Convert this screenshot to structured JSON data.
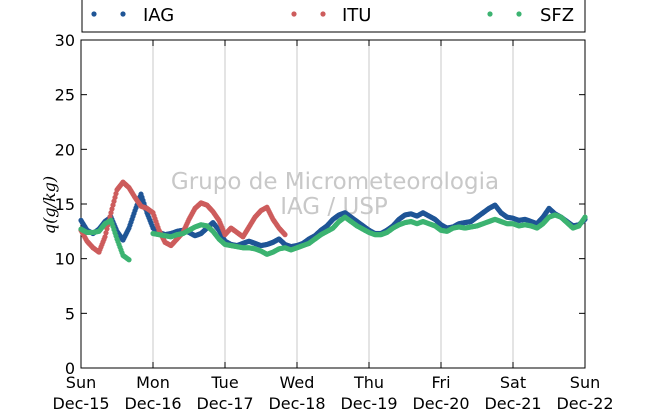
{
  "chart_data": {
    "type": "scatter",
    "ylabel": "q(g/kg)",
    "ylim": [
      0,
      30
    ],
    "yticks": [
      0,
      5,
      10,
      15,
      20,
      25,
      30
    ],
    "xlim": [
      "2013-12-15 00:00",
      "2013-12-22 00:00"
    ],
    "xticks": [
      {
        "day": "Sun",
        "date": "Dec-15"
      },
      {
        "day": "Mon",
        "date": "Dec-16"
      },
      {
        "day": "Tue",
        "date": "Dec-17"
      },
      {
        "day": "Wed",
        "date": "Dec-18"
      },
      {
        "day": "Thu",
        "date": "Dec-19"
      },
      {
        "day": "Fri",
        "date": "Dec-20"
      },
      {
        "day": "Sat",
        "date": "Dec-21"
      },
      {
        "day": "Sun",
        "date": "Dec-22"
      }
    ],
    "grid": "vertical",
    "legend": "top",
    "watermark": [
      "Grupo de Micrometeorologia",
      "IAG / USP"
    ],
    "series": [
      {
        "name": "IAG",
        "color": "#1f5596",
        "points": [
          [
            "2013-12-15 00:00",
            13.5
          ],
          [
            "2013-12-15 02:00",
            12.6
          ],
          [
            "2013-12-15 04:00",
            12.3
          ],
          [
            "2013-12-15 06:00",
            12.7
          ],
          [
            "2013-12-15 08:00",
            13.4
          ],
          [
            "2013-12-15 10:00",
            13.8
          ],
          [
            "2013-12-15 12:00",
            12.5
          ],
          [
            "2013-12-15 14:00",
            11.7
          ],
          [
            "2013-12-15 16:00",
            12.8
          ],
          [
            "2013-12-15 18:00",
            14.4
          ],
          [
            "2013-12-15 20:00",
            15.9
          ],
          [
            "2013-12-15 22:00",
            14.2
          ],
          [
            "2013-12-16 00:00",
            12.8
          ],
          [
            "2013-12-16 02:00",
            12.4
          ],
          [
            "2013-12-16 04:00",
            12.2
          ],
          [
            "2013-12-16 06:00",
            12.3
          ],
          [
            "2013-12-16 08:00",
            12.5
          ],
          [
            "2013-12-16 10:00",
            12.6
          ],
          [
            "2013-12-16 12:00",
            12.4
          ],
          [
            "2013-12-16 14:00",
            12.1
          ],
          [
            "2013-12-16 16:00",
            12.3
          ],
          [
            "2013-12-16 18:00",
            12.8
          ],
          [
            "2013-12-16 20:00",
            13.3
          ],
          [
            "2013-12-16 22:00",
            12.6
          ],
          [
            "2013-12-17 00:00",
            11.6
          ],
          [
            "2013-12-17 02:00",
            11.3
          ],
          [
            "2013-12-17 04:00",
            11.2
          ],
          [
            "2013-12-17 06:00",
            11.4
          ],
          [
            "2013-12-17 08:00",
            11.6
          ],
          [
            "2013-12-17 10:00",
            11.4
          ],
          [
            "2013-12-17 12:00",
            11.2
          ],
          [
            "2013-12-17 14:00",
            11.3
          ],
          [
            "2013-12-17 16:00",
            11.5
          ],
          [
            "2013-12-17 18:00",
            11.8
          ],
          [
            "2013-12-17 20:00",
            11.3
          ],
          [
            "2013-12-17 22:00",
            11.1
          ],
          [
            "2013-12-18 00:00",
            11.2
          ],
          [
            "2013-12-18 02:00",
            11.4
          ],
          [
            "2013-12-18 04:00",
            11.8
          ],
          [
            "2013-12-18 06:00",
            12.1
          ],
          [
            "2013-12-18 08:00",
            12.6
          ],
          [
            "2013-12-18 10:00",
            13.0
          ],
          [
            "2013-12-18 12:00",
            13.6
          ],
          [
            "2013-12-18 14:00",
            14.0
          ],
          [
            "2013-12-18 16:00",
            14.2
          ],
          [
            "2013-12-18 18:00",
            13.8
          ],
          [
            "2013-12-18 20:00",
            13.4
          ],
          [
            "2013-12-18 22:00",
            13.0
          ],
          [
            "2013-12-19 00:00",
            12.6
          ],
          [
            "2013-12-19 02:00",
            12.3
          ],
          [
            "2013-12-19 04:00",
            12.3
          ],
          [
            "2013-12-19 06:00",
            12.6
          ],
          [
            "2013-12-19 08:00",
            13.0
          ],
          [
            "2013-12-19 10:00",
            13.6
          ],
          [
            "2013-12-19 12:00",
            14.0
          ],
          [
            "2013-12-19 14:00",
            14.1
          ],
          [
            "2013-12-19 16:00",
            13.9
          ],
          [
            "2013-12-19 18:00",
            14.2
          ],
          [
            "2013-12-19 20:00",
            13.9
          ],
          [
            "2013-12-19 22:00",
            13.6
          ],
          [
            "2013-12-20 00:00",
            13.1
          ],
          [
            "2013-12-20 02:00",
            12.8
          ],
          [
            "2013-12-20 04:00",
            12.9
          ],
          [
            "2013-12-20 06:00",
            13.2
          ],
          [
            "2013-12-20 08:00",
            13.3
          ],
          [
            "2013-12-20 10:00",
            13.4
          ],
          [
            "2013-12-20 12:00",
            13.8
          ],
          [
            "2013-12-20 14:00",
            14.2
          ],
          [
            "2013-12-20 16:00",
            14.6
          ],
          [
            "2013-12-20 18:00",
            14.9
          ],
          [
            "2013-12-20 20:00",
            14.2
          ],
          [
            "2013-12-20 22:00",
            13.8
          ],
          [
            "2013-12-21 00:00",
            13.7
          ],
          [
            "2013-12-21 02:00",
            13.5
          ],
          [
            "2013-12-21 04:00",
            13.6
          ],
          [
            "2013-12-21 06:00",
            13.4
          ],
          [
            "2013-12-21 08:00",
            13.2
          ],
          [
            "2013-12-21 10:00",
            13.8
          ],
          [
            "2013-12-21 12:00",
            14.6
          ],
          [
            "2013-12-21 14:00",
            14.1
          ],
          [
            "2013-12-21 16:00",
            13.8
          ],
          [
            "2013-12-21 18:00",
            13.4
          ],
          [
            "2013-12-21 20:00",
            13.0
          ],
          [
            "2013-12-21 22:00",
            13.1
          ],
          [
            "2013-12-22 00:00",
            13.6
          ]
        ]
      },
      {
        "name": "ITU",
        "color": "#cd5c5c",
        "points": [
          [
            "2013-12-15 00:00",
            12.6
          ],
          [
            "2013-12-15 02:00",
            11.6
          ],
          [
            "2013-12-15 04:00",
            11.0
          ],
          [
            "2013-12-15 06:00",
            10.6
          ],
          [
            "2013-12-15 08:00",
            12.0
          ],
          [
            "2013-12-15 10:00",
            14.2
          ],
          [
            "2013-12-15 12:00",
            16.3
          ],
          [
            "2013-12-15 14:00",
            17.0
          ],
          [
            "2013-12-15 16:00",
            16.5
          ],
          [
            "2013-12-15 18:00",
            15.6
          ],
          [
            "2013-12-15 20:00",
            14.8
          ],
          [
            "2013-12-15 22:00",
            14.6
          ],
          [
            "2013-12-16 00:00",
            14.2
          ],
          [
            "2013-12-16 02:00",
            12.6
          ],
          [
            "2013-12-16 04:00",
            11.5
          ],
          [
            "2013-12-16 06:00",
            11.2
          ],
          [
            "2013-12-16 08:00",
            11.8
          ],
          [
            "2013-12-16 10:00",
            12.4
          ],
          [
            "2013-12-16 12:00",
            13.6
          ],
          [
            "2013-12-16 14:00",
            14.6
          ],
          [
            "2013-12-16 16:00",
            15.1
          ],
          [
            "2013-12-16 18:00",
            14.9
          ],
          [
            "2013-12-16 20:00",
            14.3
          ],
          [
            "2013-12-16 22:00",
            13.5
          ],
          [
            "2013-12-17 00:00",
            12.2
          ],
          [
            "2013-12-17 02:00",
            12.8
          ],
          [
            "2013-12-17 04:00",
            12.4
          ],
          [
            "2013-12-17 06:00",
            12.0
          ],
          [
            "2013-12-17 08:00",
            12.9
          ],
          [
            "2013-12-17 10:00",
            13.8
          ],
          [
            "2013-12-17 12:00",
            14.4
          ],
          [
            "2013-12-17 14:00",
            14.7
          ],
          [
            "2013-12-17 16:00",
            13.6
          ],
          [
            "2013-12-17 18:00",
            12.8
          ],
          [
            "2013-12-17 20:00",
            12.2
          ]
        ]
      },
      {
        "name": "SFZ",
        "color": "#3cb371",
        "points": [
          [
            "2013-12-15 00:00",
            12.7
          ],
          [
            "2013-12-15 02:00",
            12.4
          ],
          [
            "2013-12-15 04:00",
            12.4
          ],
          [
            "2013-12-15 06:00",
            12.5
          ],
          [
            "2013-12-15 08:00",
            13.2
          ],
          [
            "2013-12-15 10:00",
            13.5
          ],
          [
            "2013-12-15 12:00",
            11.8
          ],
          [
            "2013-12-15 14:00",
            10.3
          ],
          [
            "2013-12-15 16:00",
            9.9
          ],
          [
            "2013-12-16 00:00",
            12.3
          ],
          [
            "2013-12-16 02:00",
            12.2
          ],
          [
            "2013-12-16 04:00",
            12.1
          ],
          [
            "2013-12-16 06:00",
            12.0
          ],
          [
            "2013-12-16 08:00",
            12.2
          ],
          [
            "2013-12-16 10:00",
            12.3
          ],
          [
            "2013-12-16 12:00",
            12.6
          ],
          [
            "2013-12-16 14:00",
            12.9
          ],
          [
            "2013-12-16 16:00",
            13.1
          ],
          [
            "2013-12-16 18:00",
            13.0
          ],
          [
            "2013-12-16 20:00",
            12.5
          ],
          [
            "2013-12-16 22:00",
            11.8
          ],
          [
            "2013-12-17 00:00",
            11.3
          ],
          [
            "2013-12-17 02:00",
            11.2
          ],
          [
            "2013-12-17 04:00",
            11.1
          ],
          [
            "2013-12-17 06:00",
            11.0
          ],
          [
            "2013-12-17 08:00",
            11.0
          ],
          [
            "2013-12-17 10:00",
            10.9
          ],
          [
            "2013-12-17 12:00",
            10.7
          ],
          [
            "2013-12-17 14:00",
            10.4
          ],
          [
            "2013-12-17 16:00",
            10.6
          ],
          [
            "2013-12-17 18:00",
            10.9
          ],
          [
            "2013-12-17 20:00",
            11.0
          ],
          [
            "2013-12-17 22:00",
            10.8
          ],
          [
            "2013-12-18 00:00",
            11.0
          ],
          [
            "2013-12-18 02:00",
            11.2
          ],
          [
            "2013-12-18 04:00",
            11.4
          ],
          [
            "2013-12-18 06:00",
            11.8
          ],
          [
            "2013-12-18 08:00",
            12.2
          ],
          [
            "2013-12-18 10:00",
            12.5
          ],
          [
            "2013-12-18 12:00",
            12.8
          ],
          [
            "2013-12-18 14:00",
            13.4
          ],
          [
            "2013-12-18 16:00",
            13.8
          ],
          [
            "2013-12-18 18:00",
            13.4
          ],
          [
            "2013-12-18 20:00",
            13.0
          ],
          [
            "2013-12-18 22:00",
            12.7
          ],
          [
            "2013-12-19 00:00",
            12.4
          ],
          [
            "2013-12-19 02:00",
            12.2
          ],
          [
            "2013-12-19 04:00",
            12.2
          ],
          [
            "2013-12-19 06:00",
            12.4
          ],
          [
            "2013-12-19 08:00",
            12.8
          ],
          [
            "2013-12-19 10:00",
            13.1
          ],
          [
            "2013-12-19 12:00",
            13.3
          ],
          [
            "2013-12-19 14:00",
            13.4
          ],
          [
            "2013-12-19 16:00",
            13.2
          ],
          [
            "2013-12-19 18:00",
            13.4
          ],
          [
            "2013-12-19 20:00",
            13.2
          ],
          [
            "2013-12-19 22:00",
            13.0
          ],
          [
            "2013-12-20 00:00",
            12.6
          ],
          [
            "2013-12-20 02:00",
            12.5
          ],
          [
            "2013-12-20 04:00",
            12.8
          ],
          [
            "2013-12-20 06:00",
            12.9
          ],
          [
            "2013-12-20 08:00",
            12.8
          ],
          [
            "2013-12-20 10:00",
            12.9
          ],
          [
            "2013-12-20 12:00",
            13.0
          ],
          [
            "2013-12-20 14:00",
            13.2
          ],
          [
            "2013-12-20 16:00",
            13.4
          ],
          [
            "2013-12-20 18:00",
            13.6
          ],
          [
            "2013-12-20 20:00",
            13.4
          ],
          [
            "2013-12-20 22:00",
            13.2
          ],
          [
            "2013-12-21 00:00",
            13.2
          ],
          [
            "2013-12-21 02:00",
            13.0
          ],
          [
            "2013-12-21 04:00",
            13.1
          ],
          [
            "2013-12-21 06:00",
            13.0
          ],
          [
            "2013-12-21 08:00",
            12.8
          ],
          [
            "2013-12-21 10:00",
            13.2
          ],
          [
            "2013-12-21 12:00",
            13.8
          ],
          [
            "2013-12-21 14:00",
            14.0
          ],
          [
            "2013-12-21 16:00",
            13.8
          ],
          [
            "2013-12-21 18:00",
            13.3
          ],
          [
            "2013-12-21 20:00",
            12.8
          ],
          [
            "2013-12-21 22:00",
            13.0
          ],
          [
            "2013-12-22 00:00",
            13.8
          ]
        ]
      }
    ]
  }
}
